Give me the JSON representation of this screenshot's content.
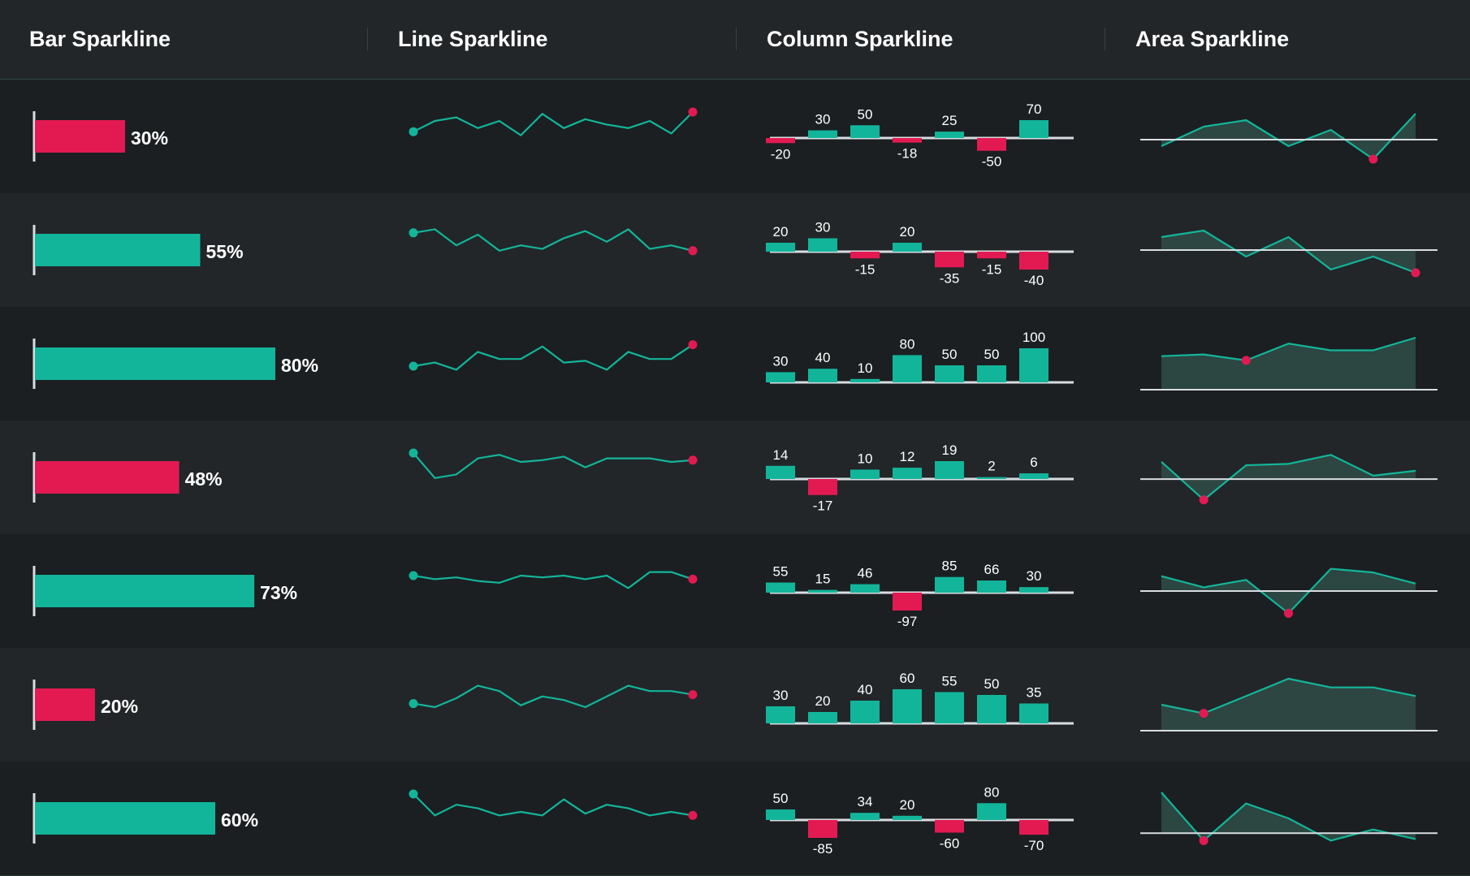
{
  "colors": {
    "teal": "#13b59a",
    "red": "#e31a52",
    "baseline": "#d8dde2",
    "text": "#ffffff",
    "row_dark": "#1b1f22",
    "row_light": "#222629",
    "area_fill": "#2f4a45"
  },
  "headers": [
    "Bar Sparkline",
    "Line Sparkline",
    "Column Sparkline",
    "Area Sparkline"
  ],
  "chart_data": [
    {
      "type": "bar",
      "title": "Bar Sparkline",
      "xlim": [
        0,
        100
      ],
      "values": [
        30,
        55,
        80,
        48,
        73,
        20,
        60
      ],
      "labels": [
        "30%",
        "55%",
        "80%",
        "48%",
        "73%",
        "20%",
        "60%"
      ],
      "colors": [
        "red",
        "teal",
        "teal",
        "red",
        "teal",
        "red",
        "teal"
      ]
    },
    {
      "type": "line",
      "title": "Line Sparkline",
      "ylim": [
        0,
        100
      ],
      "series": [
        {
          "values": [
            45,
            75,
            85,
            55,
            75,
            35,
            95,
            55,
            80,
            65,
            55,
            75,
            40,
            100
          ],
          "marker_colors": [
            "teal",
            "red"
          ]
        },
        {
          "values": [
            80,
            90,
            45,
            75,
            30,
            45,
            35,
            65,
            85,
            55,
            90,
            35,
            45,
            30
          ],
          "marker_colors": [
            "teal",
            "red"
          ]
        },
        {
          "values": [
            25,
            35,
            15,
            65,
            45,
            45,
            80,
            35,
            40,
            15,
            65,
            45,
            45,
            85
          ],
          "marker_colors": [
            "teal",
            "red"
          ]
        },
        {
          "values": [
            100,
            30,
            40,
            85,
            95,
            75,
            80,
            90,
            60,
            85,
            85,
            85,
            75,
            80
          ],
          "marker_colors": [
            "teal",
            "red"
          ]
        },
        {
          "values": [
            75,
            65,
            70,
            60,
            55,
            75,
            70,
            75,
            65,
            75,
            40,
            85,
            85,
            65
          ],
          "marker_colors": [
            "teal",
            "red"
          ]
        },
        {
          "values": [
            35,
            25,
            50,
            85,
            70,
            30,
            55,
            45,
            25,
            55,
            85,
            70,
            70,
            60
          ],
          "marker_colors": [
            "teal",
            "red"
          ]
        },
        {
          "values": [
            100,
            40,
            70,
            60,
            40,
            50,
            40,
            85,
            45,
            70,
            60,
            40,
            50,
            40
          ],
          "marker_colors": [
            "teal",
            "red"
          ]
        }
      ]
    },
    {
      "type": "bar",
      "title": "Column Sparkline",
      "ylim": [
        -100,
        100
      ],
      "series": [
        {
          "values": [
            -20,
            30,
            50,
            -18,
            25,
            -50,
            70
          ],
          "labels": [
            "-20",
            "30",
            "50",
            "-18",
            "25",
            "-50",
            "70"
          ]
        },
        {
          "values": [
            20,
            30,
            -15,
            20,
            -35,
            -15,
            -40
          ],
          "labels": [
            "20",
            "30",
            "-15",
            "20",
            "-35",
            "-15",
            "-40"
          ]
        },
        {
          "values": [
            30,
            40,
            10,
            80,
            50,
            50,
            100
          ],
          "labels": [
            "30",
            "40",
            "10",
            "80",
            "50",
            "50",
            "100"
          ]
        },
        {
          "values": [
            14,
            -17,
            10,
            12,
            19,
            2,
            6
          ],
          "labels": [
            "14",
            "-17",
            "10",
            "12",
            "19",
            "2",
            "6"
          ]
        },
        {
          "values": [
            55,
            15,
            46,
            -97,
            85,
            66,
            30
          ],
          "labels": [
            "55",
            "15",
            "46",
            "-97",
            "85",
            "66",
            "30"
          ]
        },
        {
          "values": [
            30,
            20,
            40,
            60,
            55,
            50,
            35
          ],
          "labels": [
            "30",
            "20",
            "40",
            "60",
            "55",
            "50",
            "35"
          ]
        },
        {
          "values": [
            50,
            -85,
            34,
            20,
            -60,
            80,
            -70
          ],
          "labels": [
            "50",
            "-85",
            "34",
            "20",
            "-60",
            "80",
            "-70"
          ]
        }
      ]
    },
    {
      "type": "area",
      "title": "Area Sparkline",
      "series": [
        {
          "values": [
            -10,
            20,
            30,
            -10,
            15,
            -30,
            40
          ],
          "baseline": 0,
          "ylim": [
            -35,
            45
          ],
          "highlight_index": 5
        },
        {
          "values": [
            20,
            30,
            -10,
            20,
            -30,
            -10,
            -35
          ],
          "baseline": 0,
          "ylim": [
            -40,
            40
          ],
          "highlight_index": 6
        },
        {
          "values": [
            40,
            42,
            35,
            55,
            47,
            47,
            62
          ],
          "baseline": 0,
          "ylim": [
            0,
            62
          ],
          "highlight_index": 2
        },
        {
          "values": [
            25,
            -30,
            20,
            22,
            35,
            5,
            12
          ],
          "baseline": 0,
          "ylim": [
            -35,
            40
          ],
          "highlight_index": 1
        },
        {
          "values": [
            20,
            5,
            15,
            -30,
            30,
            25,
            10
          ],
          "baseline": 0,
          "ylim": [
            -35,
            35
          ],
          "highlight_index": 3
        },
        {
          "values": [
            30,
            20,
            40,
            60,
            50,
            50,
            40
          ],
          "baseline": 0,
          "ylim": [
            0,
            60
          ],
          "highlight_index": 1
        },
        {
          "values": [
            55,
            -10,
            40,
            20,
            -10,
            5,
            -8
          ],
          "baseline": 0,
          "ylim": [
            -15,
            55
          ],
          "highlight_index": 1
        }
      ]
    }
  ]
}
